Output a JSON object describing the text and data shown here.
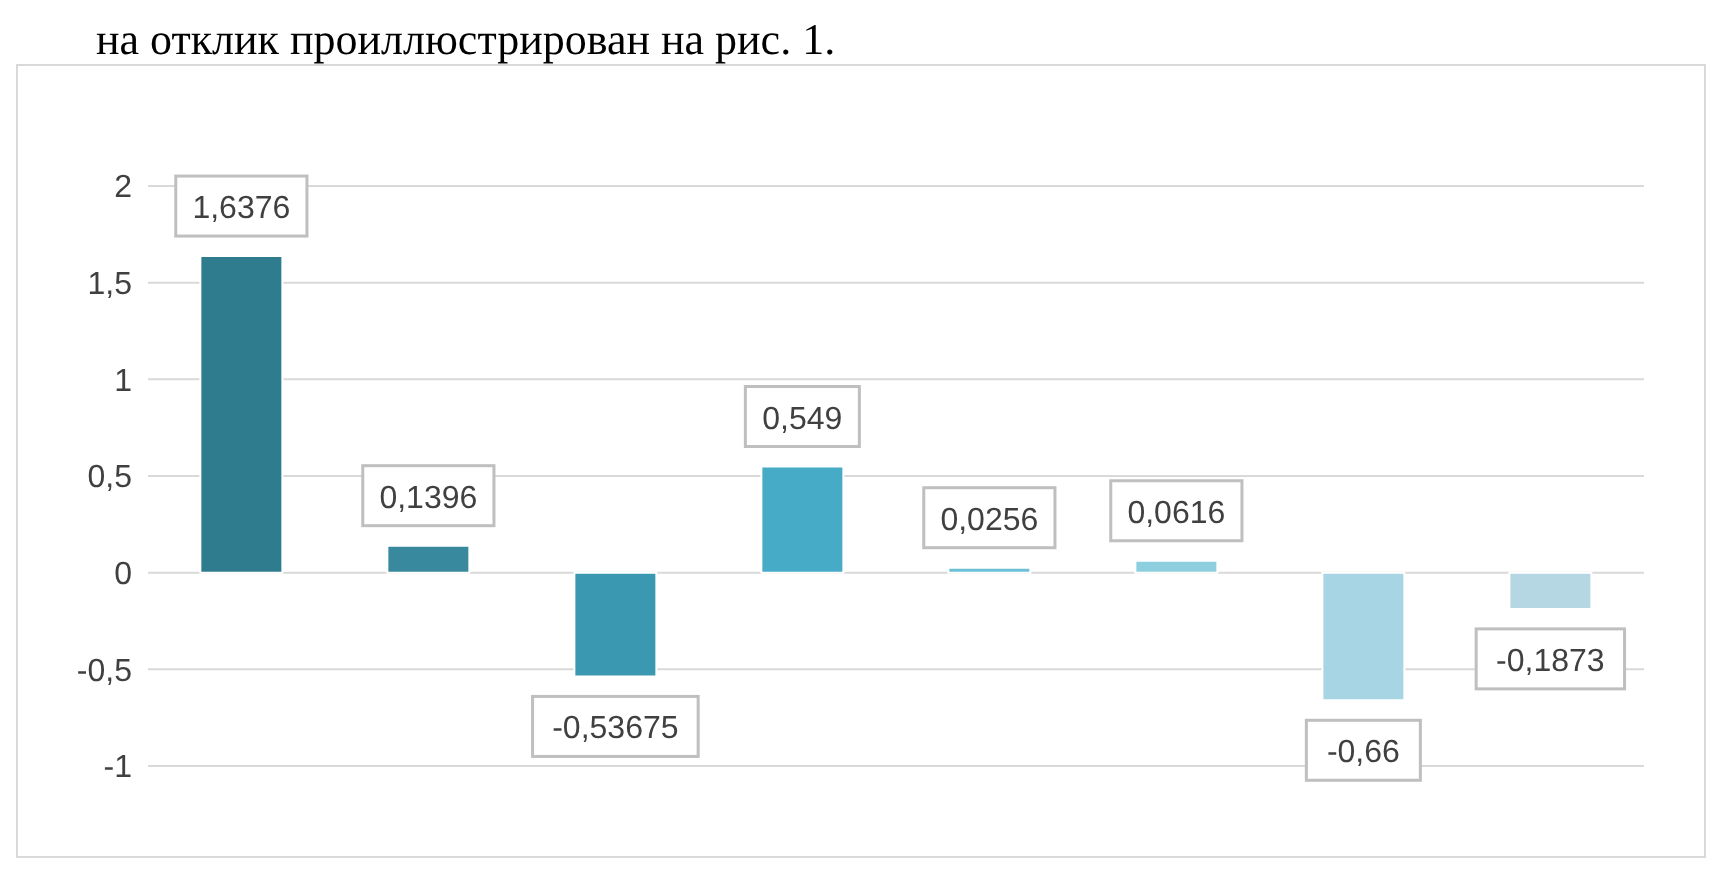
{
  "chart_data": {
    "type": "bar",
    "annotations": [
      "на отклик проиллюстрирован на рис. 1."
    ],
    "categories": [
      null,
      null,
      null,
      null,
      null,
      null,
      null,
      null
    ],
    "values": [
      1.6376,
      0.1396,
      -0.53675,
      0.549,
      0.0256,
      0.0616,
      -0.66,
      -0.1873
    ],
    "value_labels": [
      "1,6376",
      "0,1396",
      "-0,53675",
      "0,549",
      "0,0256",
      "0,0616",
      "-0,66",
      "-0,1873"
    ],
    "colors": [
      "#2f7c8e",
      "#38899e",
      "#3a98b0",
      "#45abc6",
      "#6bc0d6",
      "#8ecfdf",
      "#a8d5e4",
      "#b4d7e3"
    ],
    "ylim": [
      -1,
      2
    ],
    "yticks": [
      {
        "value": -1,
        "label": "-1"
      },
      {
        "value": -0.5,
        "label": "-0,5"
      },
      {
        "value": 0,
        "label": "0"
      },
      {
        "value": 0.5,
        "label": "0,5"
      },
      {
        "value": 1,
        "label": "1"
      },
      {
        "value": 1.5,
        "label": "1,5"
      },
      {
        "value": 2,
        "label": "2"
      }
    ],
    "grid": "y",
    "tick_labels": "y"
  }
}
